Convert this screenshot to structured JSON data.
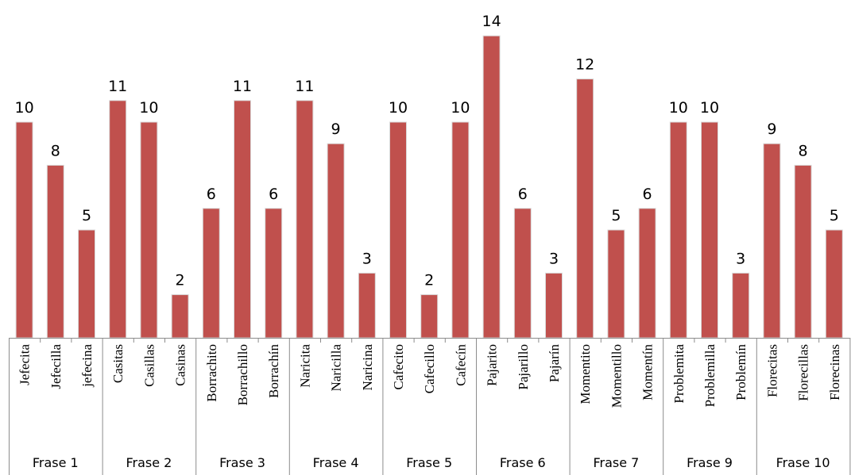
{
  "chart_data": {
    "type": "bar",
    "bar_color": "#c0504d",
    "categories": [
      "Jefecita",
      "Jefecilla",
      "jefecina",
      "Casitas",
      "Casillas",
      "Casinas",
      "Borrachito",
      "Borrachillo",
      "Borrachín",
      "Naricita",
      "Naricilla",
      "Naricina",
      "Cafecito",
      "Cafecillo",
      "Cafecín",
      "Pajarito",
      "Pajarillo",
      "Pajarín",
      "Momentito",
      "Momentillo",
      "Momentín",
      "Problemita",
      "Problemilla",
      "Problemín",
      "Florecitas",
      "Florecillas",
      "Florecinas"
    ],
    "values": [
      10,
      8,
      5,
      11,
      10,
      2,
      6,
      11,
      6,
      11,
      9,
      3,
      10,
      2,
      10,
      14,
      6,
      3,
      12,
      5,
      6,
      10,
      10,
      3,
      9,
      8,
      5
    ],
    "groups": [
      {
        "label": "Frase 1",
        "count": 3
      },
      {
        "label": "Frase 2",
        "count": 3
      },
      {
        "label": "Frase 3",
        "count": 3
      },
      {
        "label": "Frase 4",
        "count": 3
      },
      {
        "label": "Frase 5",
        "count": 3
      },
      {
        "label": "Frase 6",
        "count": 3
      },
      {
        "label": "Frase 7",
        "count": 3
      },
      {
        "label": "Frase 9",
        "count": 3
      },
      {
        "label": "Frase 10",
        "count": 3
      }
    ],
    "ylim": [
      0,
      15
    ],
    "data_labels": true,
    "legend": "none",
    "grid": false
  }
}
